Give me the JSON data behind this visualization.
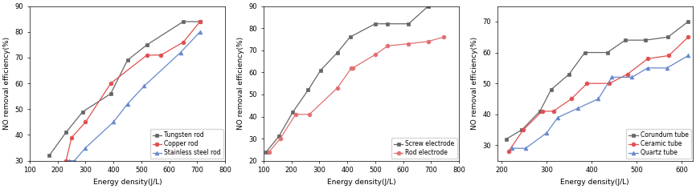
{
  "plot1": {
    "xlabel": "Energy density(J/L)",
    "ylabel": "NO removal efficiency(%)",
    "xlim": [
      100,
      800
    ],
    "ylim": [
      30,
      90
    ],
    "xticks": [
      100,
      200,
      300,
      400,
      500,
      600,
      700,
      800
    ],
    "yticks": [
      30,
      40,
      50,
      60,
      70,
      80,
      90
    ],
    "series": [
      {
        "label": "Tungsten rod",
        "color": "#666666",
        "marker": "s",
        "x": [
          170,
          230,
          290,
          390,
          450,
          520,
          650,
          710
        ],
        "y": [
          32,
          41,
          49,
          56,
          69,
          75,
          84,
          84
        ]
      },
      {
        "label": "Copper rod",
        "color": "#e05050",
        "marker": "o",
        "x": [
          230,
          250,
          300,
          390,
          520,
          570,
          650,
          710
        ],
        "y": [
          30,
          39,
          45,
          60,
          71,
          71,
          76,
          84
        ]
      },
      {
        "label": "Stainless steel rod",
        "color": "#6688cc",
        "marker": "^",
        "x": [
          240,
          260,
          300,
          400,
          450,
          510,
          640,
          710
        ],
        "y": [
          30,
          30,
          35,
          45,
          52,
          59,
          72,
          80
        ]
      }
    ]
  },
  "plot2": {
    "xlabel": "Energy density(J/L)",
    "ylabel": "NO removal efficiency(%)",
    "xlim": [
      100,
      800
    ],
    "ylim": [
      20,
      90
    ],
    "xticks": [
      100,
      200,
      300,
      400,
      500,
      600,
      700,
      800
    ],
    "yticks": [
      20,
      30,
      40,
      50,
      60,
      70,
      80,
      90
    ],
    "series": [
      {
        "label": "Screw electrode",
        "color": "#666666",
        "marker": "s",
        "x": [
          110,
          155,
          205,
          260,
          305,
          365,
          410,
          500,
          545,
          620,
          690
        ],
        "y": [
          24,
          31,
          42,
          52,
          61,
          69,
          76,
          82,
          82,
          82,
          90
        ]
      },
      {
        "label": "Rod electrode",
        "color": "#e07070",
        "marker": "o",
        "x": [
          120,
          160,
          215,
          265,
          365,
          415,
          420,
          500,
          545,
          620,
          690,
          745
        ],
        "y": [
          24,
          30,
          41,
          41,
          53,
          62,
          62,
          68,
          72,
          73,
          74,
          76
        ]
      }
    ]
  },
  "plot3": {
    "xlabel": "Energy density(J/L)",
    "ylabel": "NO removal efficiency(%)",
    "xlim": [
      190,
      625
    ],
    "ylim": [
      25,
      75
    ],
    "xticks": [
      200,
      300,
      400,
      500,
      600
    ],
    "yticks": [
      30,
      40,
      50,
      60,
      70
    ],
    "series": [
      {
        "label": "Corundum tube",
        "color": "#666666",
        "marker": "s",
        "x": [
          210,
          245,
          285,
          310,
          350,
          385,
          435,
          475,
          520,
          570,
          615
        ],
        "y": [
          32,
          35,
          41,
          48,
          53,
          60,
          60,
          64,
          64,
          65,
          70
        ]
      },
      {
        "label": "Ceramic tube",
        "color": "#e05050",
        "marker": "o",
        "x": [
          215,
          248,
          290,
          315,
          355,
          390,
          440,
          480,
          525,
          572,
          615
        ],
        "y": [
          28,
          35,
          41,
          41,
          45,
          50,
          50,
          53,
          58,
          59,
          65
        ]
      },
      {
        "label": "Quartz tube",
        "color": "#6688cc",
        "marker": "^",
        "x": [
          222,
          253,
          300,
          325,
          370,
          415,
          445,
          490,
          525,
          568,
          615
        ],
        "y": [
          29,
          29,
          34,
          39,
          42,
          45,
          52,
          52,
          55,
          55,
          59
        ]
      }
    ]
  }
}
